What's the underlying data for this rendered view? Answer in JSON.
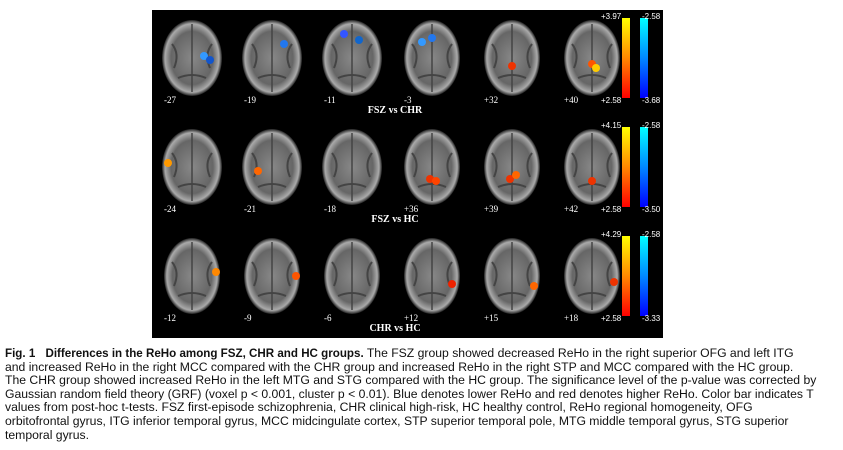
{
  "figure": {
    "rows": [
      {
        "label": "FSZ vs CHR",
        "slices": [
          "-27",
          "-19",
          "-11",
          "-3",
          "+32",
          "+40"
        ],
        "hot": [
          "+3.97",
          "+2.58"
        ],
        "cool": [
          "-2.58",
          "-3.68"
        ]
      },
      {
        "label": "FSZ vs HC",
        "slices": [
          "-24",
          "-21",
          "-18",
          "+36",
          "+39",
          "+42"
        ],
        "hot": [
          "+4.15",
          "+2.58"
        ],
        "cool": [
          "-2.58",
          "-3.50"
        ]
      },
      {
        "label": "CHR vs HC",
        "slices": [
          "-12",
          "-9",
          "-6",
          "+12",
          "+15",
          "+18"
        ],
        "hot": [
          "+4.29",
          "+2.58"
        ],
        "cool": [
          "-2.58",
          "-3.33"
        ]
      }
    ]
  },
  "caption": {
    "label": "Fig. 1",
    "title": "Differences in the ReHo among FSZ, CHR and HC groups.",
    "body": "The FSZ group showed decreased ReHo in the right superior OFG and left ITG and increased ReHo in the right MCC compared with the CHR group and increased ReHo in the right STP and MCC compared with the HC group. The CHR group showed increased ReHo in the left MTG and STG compared with the HC group. The significance level of the p-value was corrected by Gaussian random field theory (GRF) (voxel p < 0.001, cluster p < 0.01). Blue denotes lower ReHo and red denotes higher ReHo. Color bar indicates T values from post-hoc t-tests. FSZ first-episode schizophrenia, CHR clinical high-risk, HC healthy control, ReHo regional homogeneity, OFG orbitofrontal gyrus, ITG inferior temporal gyrus, MCC midcingulate cortex, STP superior temporal pole, MTG middle temporal gyrus, STG superior temporal gyrus."
  }
}
